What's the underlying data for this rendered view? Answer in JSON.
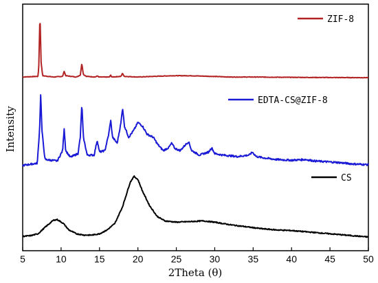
{
  "chart_data": {
    "type": "line",
    "xlabel": "2Theta (θ)",
    "ylabel": "Intensity",
    "xlim": [
      5,
      50
    ],
    "x_ticks": [
      "5",
      "10",
      "15",
      "20",
      "25",
      "30",
      "35",
      "40",
      "45",
      "50"
    ],
    "y_ticks_shown": false,
    "grid": false,
    "legend_placement": "inline-right",
    "series": [
      {
        "name": "ZIF-8",
        "color": "#b22222",
        "points": [
          [
            5,
            0.02
          ],
          [
            7.0,
            0.03
          ],
          [
            7.1,
            0.2
          ],
          [
            7.25,
            1.0
          ],
          [
            7.4,
            0.25
          ],
          [
            7.6,
            0.04
          ],
          [
            9.0,
            0.02
          ],
          [
            10.2,
            0.03
          ],
          [
            10.4,
            0.11
          ],
          [
            10.6,
            0.04
          ],
          [
            12.0,
            0.02
          ],
          [
            12.5,
            0.05
          ],
          [
            12.7,
            0.23
          ],
          [
            12.9,
            0.06
          ],
          [
            13.3,
            0.03
          ],
          [
            14.5,
            0.02
          ],
          [
            14.7,
            0.04
          ],
          [
            14.9,
            0.02
          ],
          [
            16.3,
            0.02
          ],
          [
            16.45,
            0.05
          ],
          [
            16.6,
            0.02
          ],
          [
            17.8,
            0.03
          ],
          [
            18.0,
            0.08
          ],
          [
            18.2,
            0.03
          ],
          [
            20,
            0.02
          ],
          [
            22.1,
            0.03
          ],
          [
            24.5,
            0.04
          ],
          [
            26.7,
            0.04
          ],
          [
            29.6,
            0.03
          ],
          [
            32,
            0.02
          ],
          [
            35,
            0.02
          ],
          [
            40,
            0.015
          ],
          [
            45,
            0.012
          ],
          [
            50,
            0.01
          ]
        ]
      },
      {
        "name": "EDTA-CS@ZIF-8",
        "color": "#1a1ad6",
        "points": [
          [
            5,
            0.02
          ],
          [
            6.9,
            0.05
          ],
          [
            7.2,
            0.5
          ],
          [
            7.35,
            1.0
          ],
          [
            7.5,
            0.5
          ],
          [
            7.9,
            0.1
          ],
          [
            9.5,
            0.08
          ],
          [
            10.2,
            0.22
          ],
          [
            10.4,
            0.52
          ],
          [
            10.6,
            0.22
          ],
          [
            11.2,
            0.13
          ],
          [
            12.2,
            0.18
          ],
          [
            12.5,
            0.4
          ],
          [
            12.7,
            0.85
          ],
          [
            12.9,
            0.4
          ],
          [
            13.4,
            0.16
          ],
          [
            14.3,
            0.16
          ],
          [
            14.7,
            0.36
          ],
          [
            15.0,
            0.2
          ],
          [
            15.7,
            0.22
          ],
          [
            16.2,
            0.44
          ],
          [
            16.45,
            0.63
          ],
          [
            16.7,
            0.4
          ],
          [
            17.3,
            0.32
          ],
          [
            17.8,
            0.6
          ],
          [
            18.0,
            0.8
          ],
          [
            18.25,
            0.55
          ],
          [
            18.8,
            0.4
          ],
          [
            19.5,
            0.5
          ],
          [
            20.0,
            0.6
          ],
          [
            20.6,
            0.55
          ],
          [
            21.2,
            0.44
          ],
          [
            22.0,
            0.4
          ],
          [
            22.6,
            0.3
          ],
          [
            23.3,
            0.22
          ],
          [
            24.0,
            0.26
          ],
          [
            24.4,
            0.32
          ],
          [
            24.8,
            0.25
          ],
          [
            25.5,
            0.22
          ],
          [
            26.2,
            0.3
          ],
          [
            26.6,
            0.34
          ],
          [
            27.0,
            0.22
          ],
          [
            28.0,
            0.16
          ],
          [
            29.2,
            0.2
          ],
          [
            29.6,
            0.26
          ],
          [
            30.0,
            0.18
          ],
          [
            31,
            0.16
          ],
          [
            32,
            0.15
          ],
          [
            33,
            0.14
          ],
          [
            34.5,
            0.16
          ],
          [
            34.9,
            0.2
          ],
          [
            35.4,
            0.14
          ],
          [
            36.5,
            0.12
          ],
          [
            38,
            0.1
          ],
          [
            40,
            0.09
          ],
          [
            41.8,
            0.1
          ],
          [
            43,
            0.08
          ],
          [
            46,
            0.06
          ],
          [
            48,
            0.04
          ],
          [
            50,
            0.03
          ]
        ]
      },
      {
        "name": "CS",
        "color": "#000000",
        "points": [
          [
            5,
            0.02
          ],
          [
            6.0,
            0.03
          ],
          [
            7.0,
            0.06
          ],
          [
            8.0,
            0.17
          ],
          [
            9.0,
            0.27
          ],
          [
            9.5,
            0.28
          ],
          [
            10.3,
            0.22
          ],
          [
            11.0,
            0.12
          ],
          [
            12.0,
            0.06
          ],
          [
            13.0,
            0.04
          ],
          [
            14.0,
            0.04
          ],
          [
            15.0,
            0.06
          ],
          [
            16.0,
            0.12
          ],
          [
            17.0,
            0.22
          ],
          [
            18.0,
            0.48
          ],
          [
            19.0,
            0.86
          ],
          [
            19.5,
            0.95
          ],
          [
            20.0,
            0.9
          ],
          [
            20.6,
            0.72
          ],
          [
            21.5,
            0.5
          ],
          [
            22.5,
            0.33
          ],
          [
            23.5,
            0.26
          ],
          [
            25.0,
            0.24
          ],
          [
            27.0,
            0.25
          ],
          [
            28.5,
            0.26
          ],
          [
            30.0,
            0.24
          ],
          [
            32.0,
            0.2
          ],
          [
            34.0,
            0.17
          ],
          [
            36.0,
            0.14
          ],
          [
            38.0,
            0.12
          ],
          [
            40.0,
            0.11
          ],
          [
            42.0,
            0.09
          ],
          [
            44.0,
            0.07
          ],
          [
            46.0,
            0.05
          ],
          [
            48.0,
            0.03
          ],
          [
            50.0,
            0.01
          ]
        ]
      }
    ],
    "legend": [
      {
        "label": "ZIF-8",
        "color": "#b22222"
      },
      {
        "label": "EDTA-CS@ZIF-8",
        "color": "#1a1ad6"
      },
      {
        "label": "CS",
        "color": "#000000"
      }
    ]
  }
}
